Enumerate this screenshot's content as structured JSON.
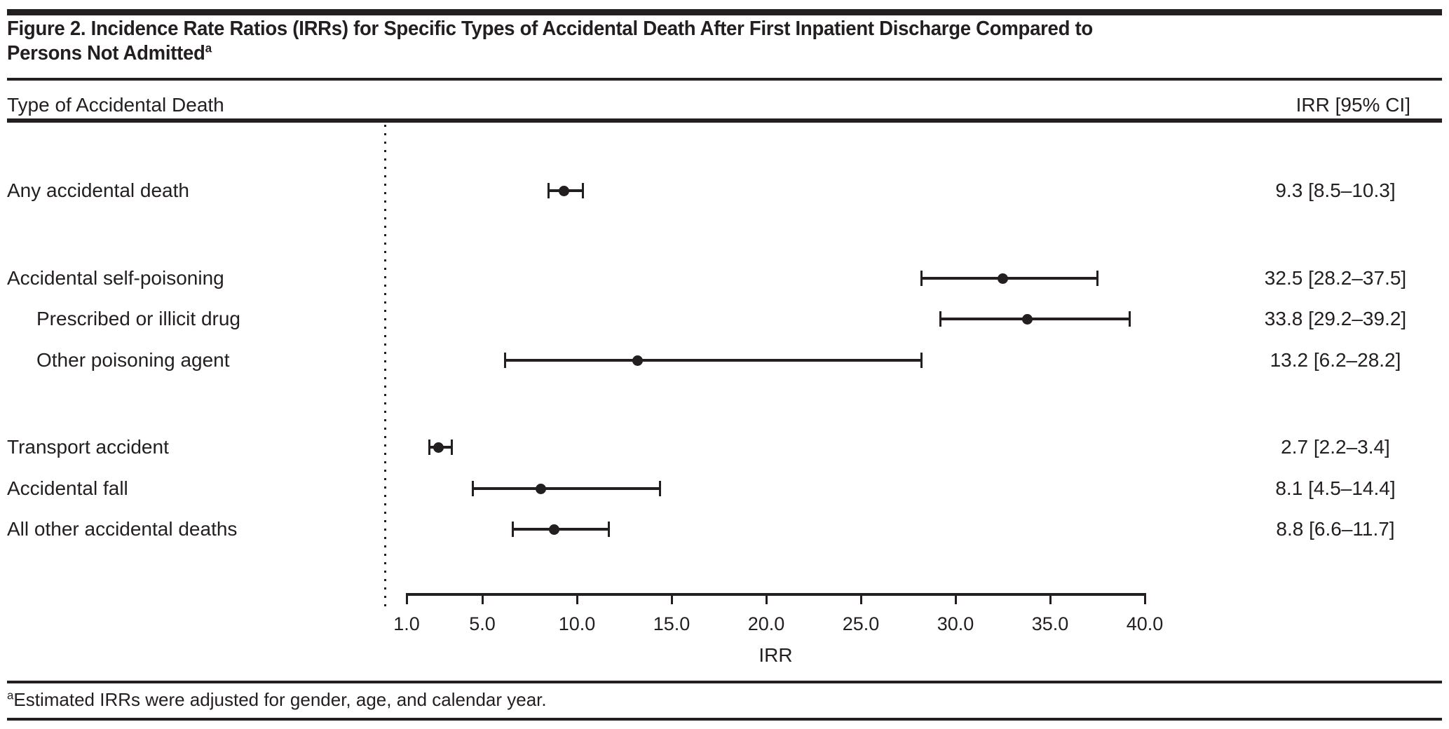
{
  "figure": {
    "title_line1": "Figure 2. Incidence Rate Ratios (IRRs) for Specific Types of Accidental Death After First Inpatient Discharge Compared to",
    "title_line2": "Persons Not Admitted",
    "title_superscript": "a",
    "footnote_superscript": "a",
    "footnote_text": "Estimated IRRs were adjusted for gender, age, and calendar year."
  },
  "table": {
    "left_header": "Type of Accidental Death",
    "right_header": "IRR [95% CI]"
  },
  "colors": {
    "ink": "#231f20",
    "background": "#ffffff"
  },
  "chart_data": {
    "type": "forest",
    "title": "Figure 2. Incidence Rate Ratios (IRRs) for Specific Types of Accidental Death After First Inpatient Discharge Compared to Persons Not Admitted",
    "xlabel": "IRR",
    "xlim": [
      1.0,
      40.0
    ],
    "axis_scale": "linear",
    "reference_line": "dotted vertical line at left of axis",
    "axis_ticks": [
      {
        "value": 1.0,
        "label": "1.0"
      },
      {
        "value": 5.0,
        "label": "5.0"
      },
      {
        "value": 10.0,
        "label": "10.0"
      },
      {
        "value": 15.0,
        "label": "15.0"
      },
      {
        "value": 20.0,
        "label": "20.0"
      },
      {
        "value": 25.0,
        "label": "25.0"
      },
      {
        "value": 30.0,
        "label": "30.0"
      },
      {
        "value": 35.0,
        "label": "35.0"
      },
      {
        "value": 40.0,
        "label": "40.0"
      }
    ],
    "rows": [
      {
        "label": "Any accidental death",
        "indent": 0,
        "gap_before": false,
        "irr": 9.3,
        "ci_low": 8.5,
        "ci_high": 10.3,
        "display": "9.3 [8.5–10.3]"
      },
      {
        "label": "Accidental self-poisoning",
        "indent": 0,
        "gap_before": true,
        "irr": 32.5,
        "ci_low": 28.2,
        "ci_high": 37.5,
        "display": "32.5 [28.2–37.5]"
      },
      {
        "label": "Prescribed or illicit drug",
        "indent": 1,
        "gap_before": false,
        "irr": 33.8,
        "ci_low": 29.2,
        "ci_high": 39.2,
        "display": "33.8 [29.2–39.2]"
      },
      {
        "label": "Other poisoning agent",
        "indent": 1,
        "gap_before": false,
        "irr": 13.2,
        "ci_low": 6.2,
        "ci_high": 28.2,
        "display": "13.2 [6.2–28.2]"
      },
      {
        "label": "Transport accident",
        "indent": 0,
        "gap_before": true,
        "irr": 2.7,
        "ci_low": 2.2,
        "ci_high": 3.4,
        "display": "2.7 [2.2–3.4]"
      },
      {
        "label": "Accidental fall",
        "indent": 0,
        "gap_before": false,
        "irr": 8.1,
        "ci_low": 4.5,
        "ci_high": 14.4,
        "display": "8.1 [4.5–14.4]"
      },
      {
        "label": "All other accidental deaths",
        "indent": 0,
        "gap_before": false,
        "irr": 8.8,
        "ci_low": 6.6,
        "ci_high": 11.7,
        "display": "8.8 [6.6–11.7]"
      }
    ]
  }
}
